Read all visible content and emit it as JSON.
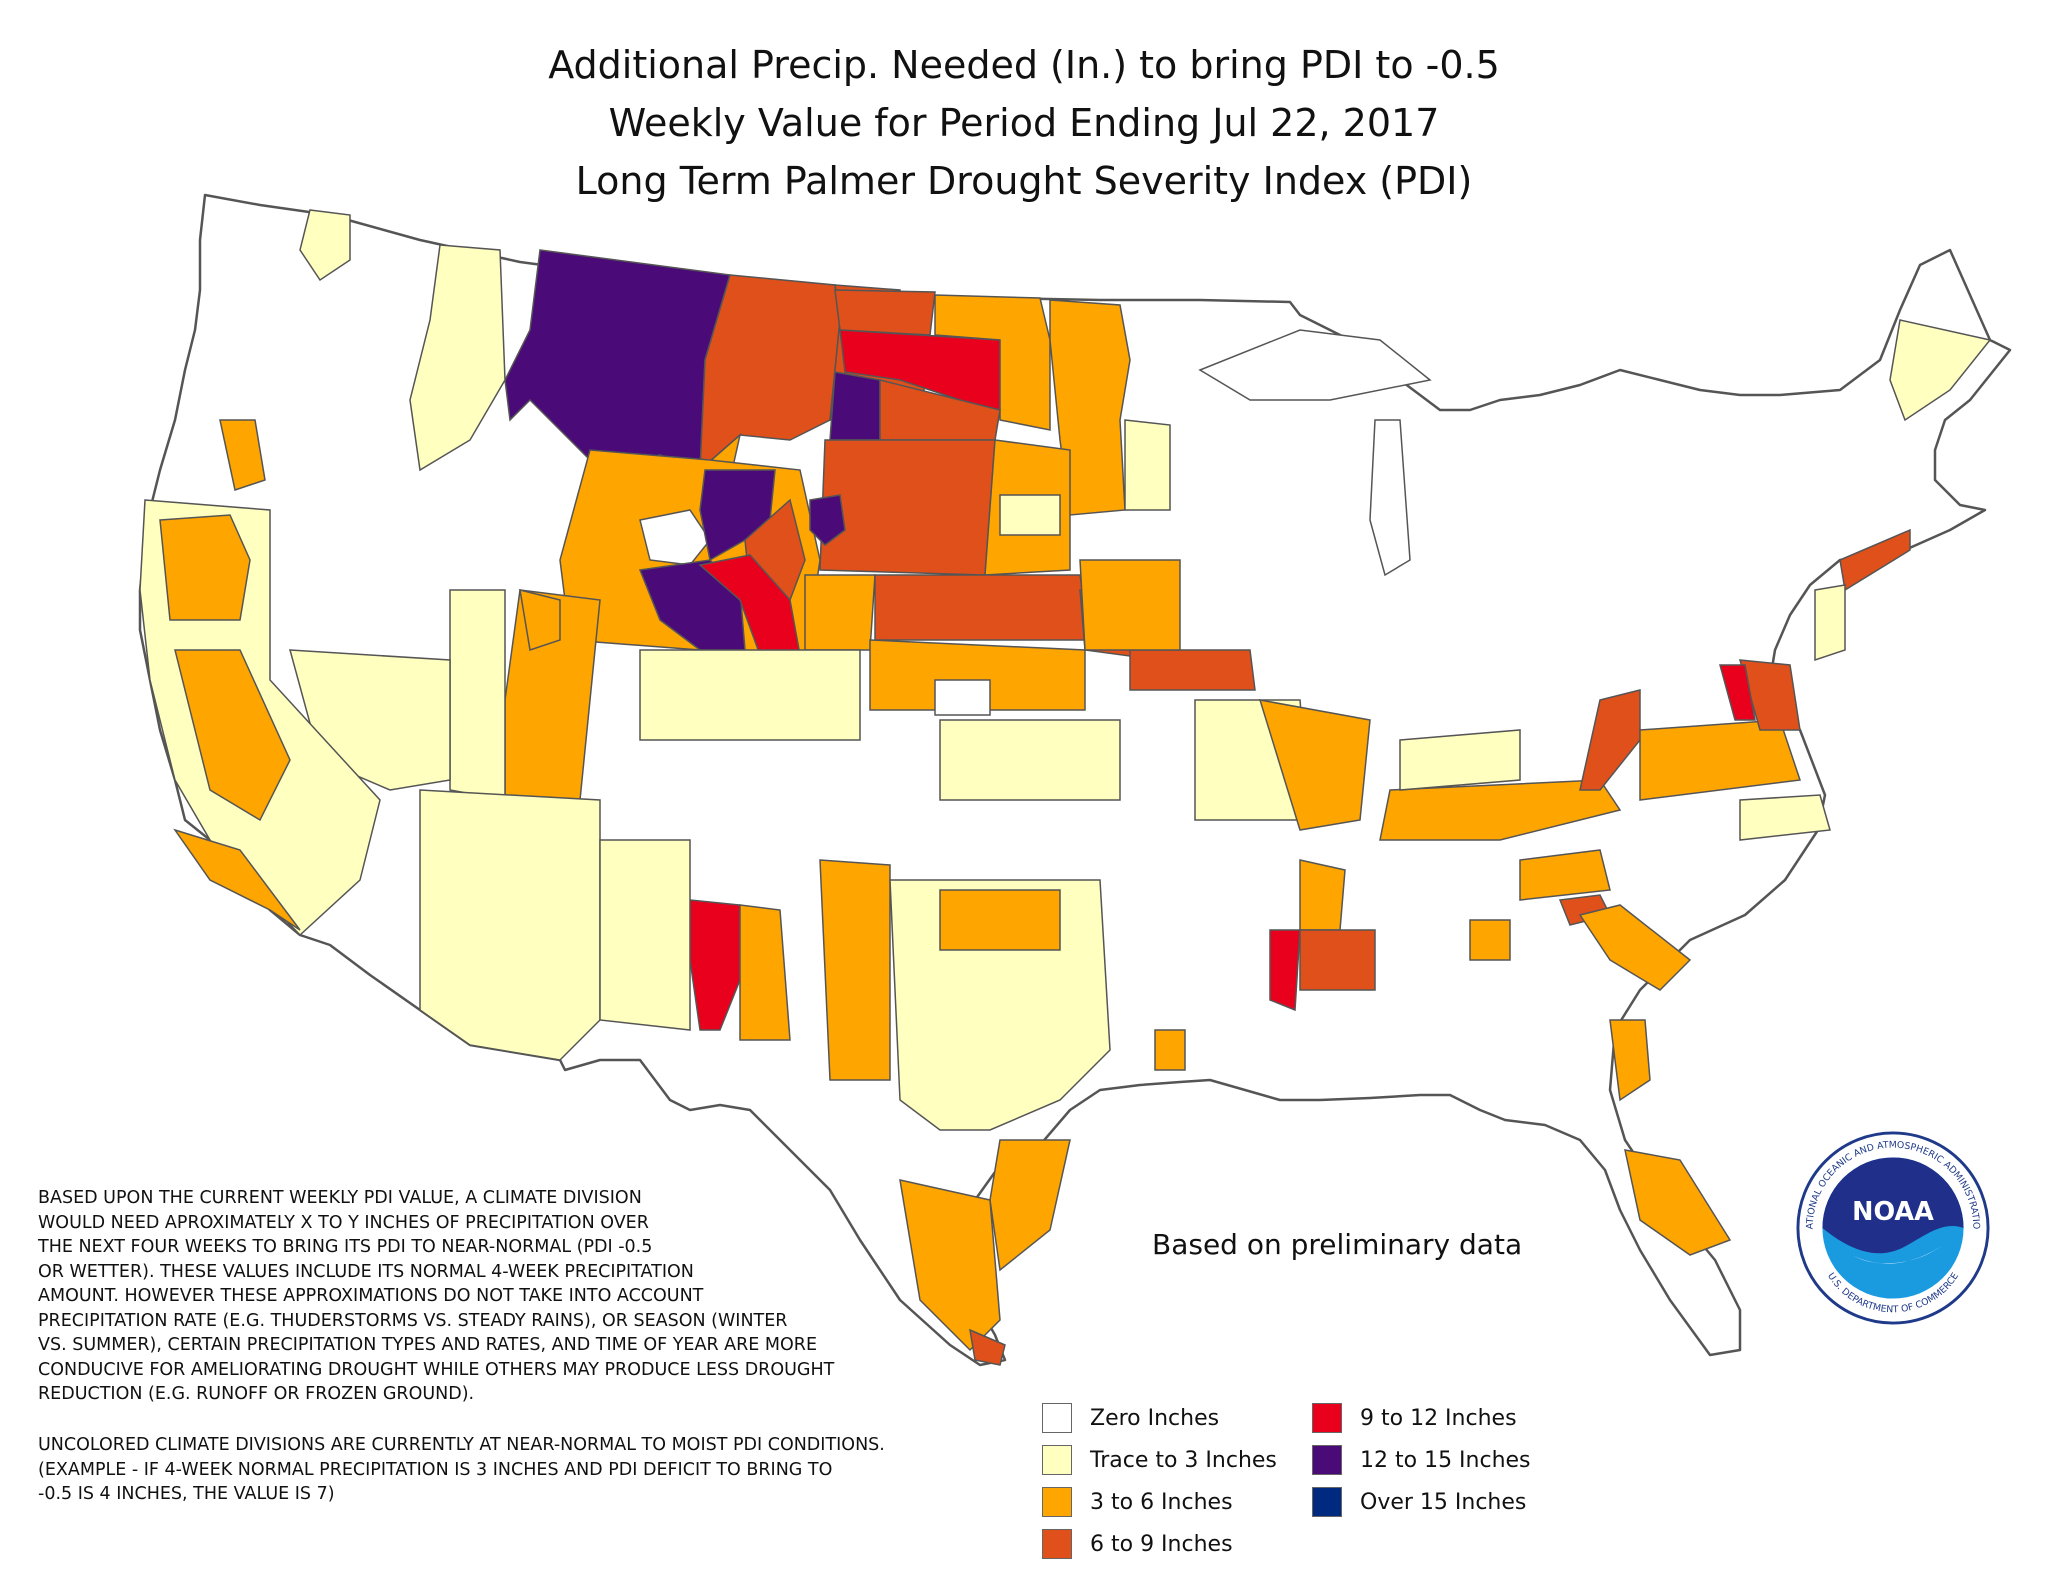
{
  "title_lines": [
    "Additional Precip. Needed (In.) to bring PDI to -0.5",
    "Weekly Value for Period Ending Jul 22, 2017",
    "Long Term Palmer Drought Severity Index (PDI)"
  ],
  "preliminary_note": "Based on preliminary data",
  "explanation_lines": [
    "BASED UPON THE CURRENT WEEKLY PDI VALUE, A CLIMATE DIVISION",
    "WOULD NEED APROXIMATELY X TO Y INCHES OF PRECIPITATION OVER",
    "THE NEXT FOUR WEEKS TO BRING ITS PDI TO NEAR-NORMAL (PDI -0.5",
    "OR WETTER). THESE VALUES INCLUDE ITS NORMAL 4-WEEK PRECIPITATION",
    "AMOUNT. HOWEVER THESE APPROXIMATIONS DO NOT TAKE INTO ACCOUNT",
    "PRECIPITATION RATE (E.G. THUDERSTORMS VS. STEADY RAINS), OR SEASON (WINTER",
    "VS. SUMMER), CERTAIN PRECIPITATION TYPES AND RATES, AND TIME OF YEAR ARE MORE",
    "CONDUCIVE FOR AMELIORATING DROUGHT WHILE OTHERS MAY PRODUCE LESS DROUGHT",
    "REDUCTION (E.G. RUNOFF OR FROZEN GROUND)."
  ],
  "uncolored_note_lines": [
    "UNCOLORED CLIMATE DIVISIONS ARE CURRENTLY AT NEAR-NORMAL TO MOIST PDI CONDITIONS.",
    "(EXAMPLE - IF 4-WEEK NORMAL PRECIPITATION IS 3 INCHES AND PDI DEFICIT TO BRING TO",
    "-0.5 IS 4 INCHES, THE VALUE IS 7)"
  ],
  "legend": [
    {
      "label": "Zero Inches",
      "color": "#ffffff"
    },
    {
      "label": "Trace to 3 Inches",
      "color": "#ffffc0"
    },
    {
      "label": "3 to 6 Inches",
      "color": "#ffa500"
    },
    {
      "label": "6 to 9 Inches",
      "color": "#e0501a"
    },
    {
      "label": "9 to 12 Inches",
      "color": "#e8001c"
    },
    {
      "label": "12 to 15 Inches",
      "color": "#4a0a78"
    },
    {
      "label": "Over 15 Inches",
      "color": "#002a80"
    }
  ],
  "logo": {
    "wordmark": "NOAA",
    "ring_text": "NATIONAL OCEANIC AND ATMOSPHERIC ADMINISTRATION",
    "ring_text_bottom": "U.S. DEPARTMENT OF COMMERCE"
  },
  "colors": {
    "zero": "#ffffff",
    "trace": "#ffffc0",
    "c3_6": "#ffa500",
    "c6_9": "#e0501a",
    "c9_12": "#e8001c",
    "c12_15": "#4a0a78",
    "border": "#555555"
  }
}
